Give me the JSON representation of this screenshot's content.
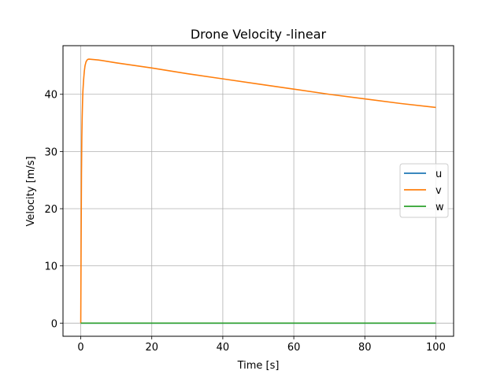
{
  "chart_data": {
    "type": "line",
    "title": "Drone Velocity -linear",
    "xlabel": "Time [s]",
    "ylabel": "Velocity [m/s]",
    "xlim": [
      -5,
      105
    ],
    "ylim": [
      -2.3,
      48.5
    ],
    "xticks": [
      0,
      20,
      40,
      60,
      80,
      100
    ],
    "yticks": [
      0,
      10,
      20,
      30,
      40
    ],
    "grid": true,
    "legend_position": "center-right",
    "series": [
      {
        "name": "u",
        "color": "#1f77b4",
        "x": [
          0,
          100
        ],
        "y": [
          0,
          0
        ]
      },
      {
        "name": "v",
        "color": "#ff7f0e",
        "x": [
          0,
          0.1,
          0.2,
          0.3,
          0.4,
          0.5,
          0.6,
          0.8,
          1.0,
          1.2,
          1.5,
          1.8,
          2.0,
          2.3,
          5,
          10,
          20,
          30,
          40,
          50,
          60,
          70,
          80,
          90,
          100
        ],
        "y": [
          0,
          14,
          26,
          32.5,
          36,
          38.5,
          40.5,
          42.5,
          44,
          45,
          45.7,
          46,
          46.1,
          46.15,
          46.0,
          45.5,
          44.6,
          43.6,
          42.7,
          41.8,
          40.9,
          40.0,
          39.2,
          38.4,
          37.7
        ]
      },
      {
        "name": "w",
        "color": "#2ca02c",
        "x": [
          0,
          100
        ],
        "y": [
          0,
          0
        ]
      }
    ]
  }
}
